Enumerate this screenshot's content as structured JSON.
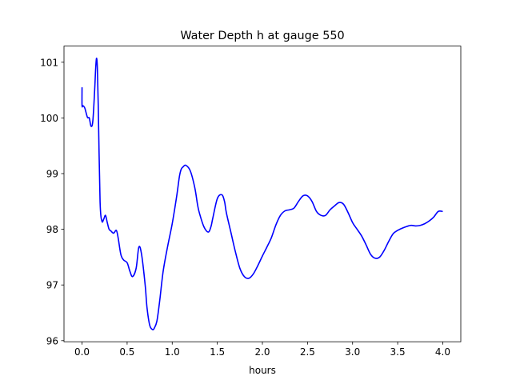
{
  "chart_data": {
    "type": "line",
    "title": "Water Depth h at gauge 550",
    "xlabel": "hours",
    "ylabel": "",
    "xlim": [
      -0.2,
      4.2
    ],
    "ylim": [
      95.98,
      101.29
    ],
    "grid": false,
    "xticks": [
      0.0,
      0.5,
      1.0,
      1.5,
      2.0,
      2.5,
      3.0,
      3.5,
      4.0
    ],
    "xtick_labels": [
      "0.0",
      "0.5",
      "1.0",
      "1.5",
      "2.0",
      "2.5",
      "3.0",
      "3.5",
      "4.0"
    ],
    "yticks": [
      96,
      97,
      98,
      99,
      100,
      101
    ],
    "ytick_labels": [
      "96",
      "97",
      "98",
      "99",
      "100",
      "101"
    ],
    "line_color": "#0000ff",
    "series": [
      {
        "x": [
          0.0,
          0.0,
          0.01,
          0.03,
          0.06,
          0.08,
          0.1,
          0.12,
          0.14,
          0.15,
          0.16,
          0.17,
          0.18,
          0.2,
          0.22,
          0.24,
          0.26,
          0.28,
          0.3,
          0.32,
          0.35,
          0.38,
          0.4,
          0.43,
          0.46,
          0.5,
          0.53,
          0.56,
          0.6,
          0.63,
          0.66,
          0.7,
          0.72,
          0.75,
          0.78,
          0.8,
          0.83,
          0.86,
          0.9,
          0.95,
          1.0,
          1.05,
          1.08,
          1.1,
          1.12,
          1.15,
          1.2,
          1.25,
          1.28,
          1.3,
          1.35,
          1.4,
          1.43,
          1.45,
          1.5,
          1.55,
          1.58,
          1.6,
          1.65,
          1.7,
          1.75,
          1.8,
          1.85,
          1.9,
          1.95,
          2.0,
          2.05,
          2.1,
          2.15,
          2.2,
          2.25,
          2.3,
          2.35,
          2.4,
          2.45,
          2.5,
          2.55,
          2.6,
          2.65,
          2.7,
          2.75,
          2.8,
          2.85,
          2.9,
          2.95,
          3.0,
          3.05,
          3.1,
          3.15,
          3.2,
          3.25,
          3.3,
          3.35,
          3.4,
          3.45,
          3.5,
          3.55,
          3.6,
          3.65,
          3.7,
          3.75,
          3.8,
          3.85,
          3.9,
          3.95,
          4.0
        ],
        "y": [
          100.55,
          100.22,
          100.22,
          100.18,
          100.01,
          100.0,
          99.85,
          99.95,
          100.5,
          100.85,
          101.07,
          100.9,
          100.2,
          98.5,
          98.15,
          98.18,
          98.25,
          98.12,
          98.0,
          97.97,
          97.93,
          97.98,
          97.85,
          97.55,
          97.45,
          97.4,
          97.25,
          97.15,
          97.3,
          97.68,
          97.55,
          97.0,
          96.6,
          96.28,
          96.2,
          96.22,
          96.35,
          96.7,
          97.25,
          97.7,
          98.1,
          98.6,
          98.95,
          99.08,
          99.12,
          99.15,
          99.05,
          98.75,
          98.45,
          98.3,
          98.05,
          97.95,
          98.05,
          98.2,
          98.55,
          98.62,
          98.5,
          98.3,
          97.95,
          97.6,
          97.3,
          97.15,
          97.12,
          97.2,
          97.35,
          97.52,
          97.68,
          97.85,
          98.08,
          98.25,
          98.33,
          98.35,
          98.38,
          98.5,
          98.6,
          98.6,
          98.5,
          98.32,
          98.25,
          98.25,
          98.35,
          98.42,
          98.48,
          98.45,
          98.3,
          98.12,
          98.0,
          97.88,
          97.72,
          97.55,
          97.48,
          97.5,
          97.62,
          97.78,
          97.92,
          97.98,
          98.02,
          98.05,
          98.07,
          98.06,
          98.07,
          98.1,
          98.15,
          98.22,
          98.32,
          98.32
        ]
      }
    ]
  }
}
